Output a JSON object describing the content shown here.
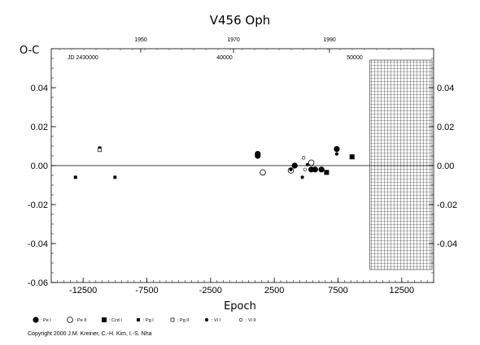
{
  "chart_data": {
    "type": "scatter",
    "title": "V456  Oph",
    "ylabel": "O-C",
    "xlabel": "Epoch",
    "xlim": [
      -15000,
      15000
    ],
    "ylim": [
      -0.06,
      0.06
    ],
    "x_ticks": [
      "-12500",
      "-7500",
      "-2500",
      "2500",
      "7500",
      "12500"
    ],
    "y_ticks": [
      "0.04",
      "0.02",
      "0.00",
      "-0.02",
      "-0.04",
      "-0.06"
    ],
    "right_y_ticks": [
      "0.04",
      "0.02",
      "0.00",
      "-0.02",
      "-0.04"
    ],
    "top_year_ticks": [
      "1950",
      "1970",
      "1990"
    ],
    "jd_ticks": [
      "JD  2430000",
      "40000",
      "50000"
    ],
    "hatched_region_from_epoch": 10000,
    "series": [
      {
        "name": "Pe I",
        "marker": "filled-circle-large",
        "points": [
          [
            1200,
            0.006
          ],
          [
            1200,
            0.005
          ],
          [
            4100,
            0.0
          ],
          [
            5400,
            -0.002
          ],
          [
            6200,
            -0.002
          ],
          [
            5700,
            -0.002
          ],
          [
            7400,
            0.0085
          ]
        ]
      },
      {
        "name": "Pe II",
        "marker": "open-circle-large",
        "points": [
          [
            1600,
            -0.0035
          ],
          [
            3800,
            -0.0025
          ],
          [
            5400,
            0.0015
          ]
        ]
      },
      {
        "name": "Ccd I",
        "marker": "filled-square",
        "points": [
          [
            6600,
            -0.0035
          ],
          [
            8600,
            0.0045
          ]
        ]
      },
      {
        "name": "Pg I",
        "marker": "filled-square-small",
        "points": [
          [
            -13100,
            -0.006
          ],
          [
            -11200,
            0.009
          ],
          [
            -10000,
            -0.006
          ]
        ]
      },
      {
        "name": "Pg II",
        "marker": "open-square-small",
        "points": [
          [
            -11200,
            0.008
          ]
        ]
      },
      {
        "name": "Vi I",
        "marker": "filled-circle-small",
        "points": [
          [
            3800,
            -0.002
          ],
          [
            4700,
            -0.006
          ],
          [
            7400,
            0.006
          ],
          [
            5100,
            0.0005
          ]
        ]
      },
      {
        "name": "Vi II",
        "marker": "open-circle-small",
        "points": [
          [
            4800,
            0.004
          ],
          [
            4900,
            -0.002
          ]
        ]
      }
    ]
  },
  "legend": [
    {
      "label": ": Pe I",
      "marker": "filled-circle-large"
    },
    {
      "label": ": Pe II",
      "marker": "open-circle-large"
    },
    {
      "label": ": Ccd I",
      "marker": "filled-square"
    },
    {
      "label": ": Pg I",
      "marker": "filled-square-small"
    },
    {
      "label": ": Pg II",
      "marker": "open-square-small"
    },
    {
      "label": ": Vi I",
      "marker": "filled-circle-small"
    },
    {
      "label": ": Vi II",
      "marker": "open-circle-small"
    }
  ],
  "copyright": "Copyright 2000 J.M. Kreiner, C.-H. Kim, I.-S. Nha"
}
